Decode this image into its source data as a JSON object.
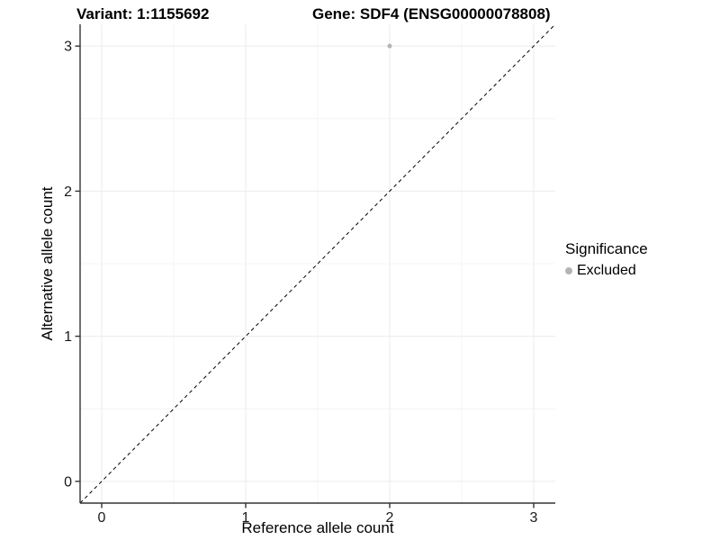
{
  "chart_data": {
    "type": "scatter",
    "title_variant": "Variant: 1:1155692",
    "title_gene": "Gene: SDF4 (ENSG00000078808)",
    "xlabel": "Reference allele count",
    "ylabel": "Alternative allele count",
    "x_ticks": [
      0,
      1,
      2,
      3
    ],
    "y_ticks": [
      0,
      1,
      2,
      3
    ],
    "xlim": [
      -0.15,
      3.15
    ],
    "ylim": [
      -0.15,
      3.15
    ],
    "grid": {
      "major_color": "#ebebeb",
      "minor_color": "#f4f4f4"
    },
    "axis_color": "#333333",
    "tick_label_color": "#1a1a1a",
    "identity_line": {
      "style": "dashed",
      "color": "#000000"
    },
    "series": [
      {
        "name": "Excluded",
        "color": "#b5b5b5",
        "points": [
          {
            "x": 2,
            "y": 3
          }
        ]
      }
    ],
    "legend": {
      "title": "Significance",
      "position": "right",
      "entries": [
        {
          "label": "Excluded",
          "color": "#b5b5b5"
        }
      ]
    }
  }
}
